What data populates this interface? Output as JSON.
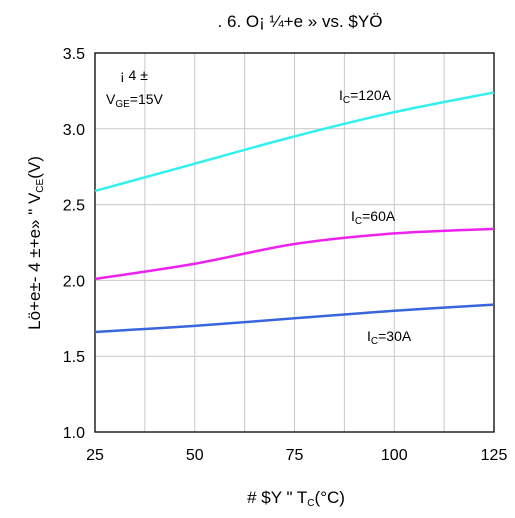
{
  "chart_data": {
    "type": "line",
    "title": ". 6. O¡ ¼+e » vs. $YÖ",
    "xlabel": {
      "prefix": "# $Y \"   T",
      "sub": "C",
      "suffix": "(°C)"
    },
    "ylabel": {
      "prefix": "Lö+e±-    4  ±+e»  \"   V",
      "sub": "CE",
      "suffix": "(V)"
    },
    "xlim": [
      25,
      125
    ],
    "ylim": [
      1.0,
      3.5
    ],
    "xticks": [
      25,
      50,
      75,
      100,
      125
    ],
    "yticks": [
      1.0,
      1.5,
      2.0,
      2.5,
      3.0,
      3.5
    ],
    "ytick_labels": [
      "1.0",
      "1.5",
      "2.0",
      "2.5",
      "3.0",
      "3.5"
    ],
    "grid": true,
    "series": [
      {
        "name": "IC=120A",
        "label_main": "I",
        "label_sub": "C",
        "label_rest": "=120A",
        "color": "#33f0f0",
        "x": [
          25,
          50,
          75,
          100,
          125
        ],
        "y": [
          2.59,
          2.77,
          2.95,
          3.11,
          3.24
        ]
      },
      {
        "name": "IC=60A",
        "label_main": "I",
        "label_sub": "C",
        "label_rest": "=60A",
        "color": "#ee22ee",
        "x": [
          25,
          50,
          75,
          100,
          125
        ],
        "y": [
          2.01,
          2.11,
          2.24,
          2.31,
          2.34
        ]
      },
      {
        "name": "IC=30A",
        "label_main": "I",
        "label_sub": "C",
        "label_rest": "=30A",
        "color": "#3a66dd",
        "x": [
          25,
          50,
          75,
          100,
          125
        ],
        "y": [
          1.66,
          1.7,
          1.75,
          1.8,
          1.84
        ]
      }
    ],
    "annotation": {
      "line1": "¡  4  ±",
      "line2_main": "V",
      "line2_sub": "GE",
      "line2_rest": "=15V"
    }
  }
}
